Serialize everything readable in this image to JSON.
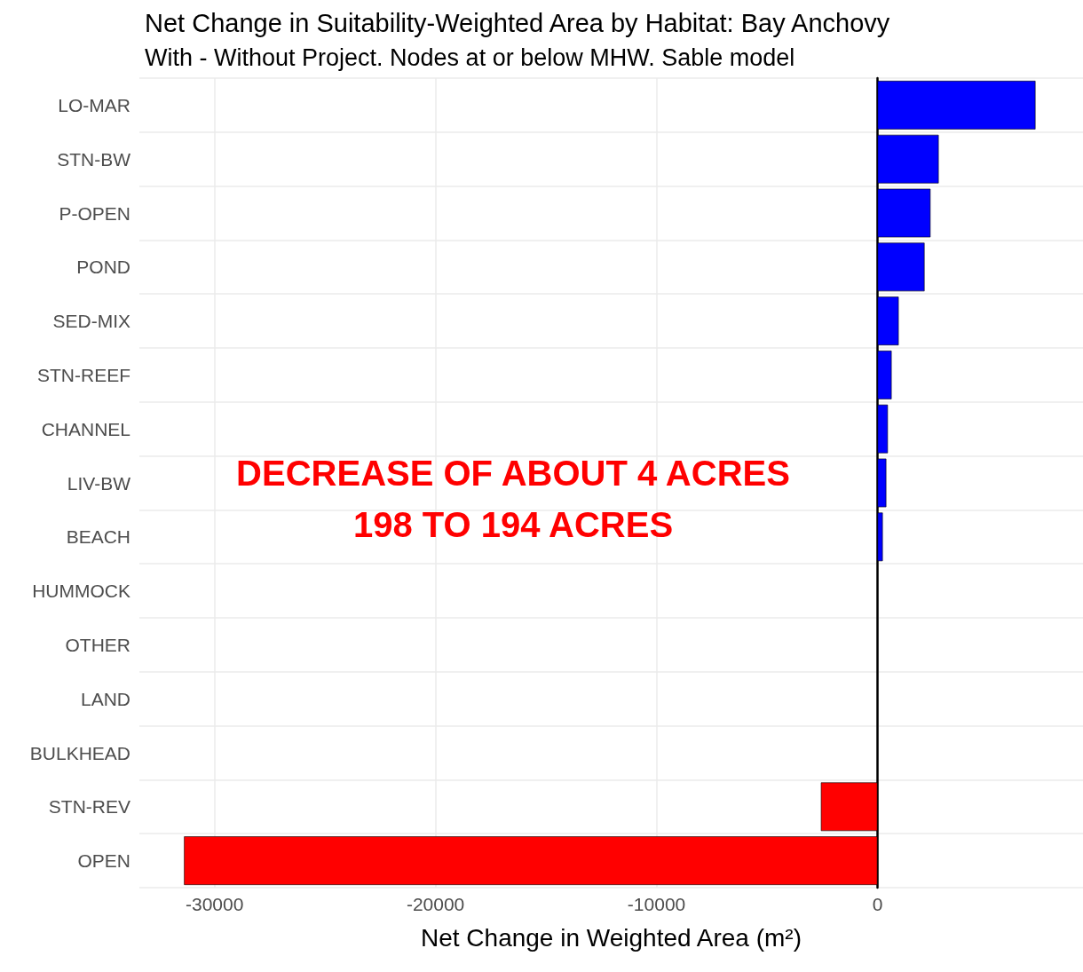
{
  "chart_data": {
    "type": "bar",
    "orientation": "horizontal",
    "title": "Net Change in Suitability-Weighted Area by Habitat: Bay Anchovy",
    "subtitle": "With - Without Project. Nodes at or below MHW. Sable model",
    "xlabel": "Net Change in Weighted Area (m²)",
    "categories": [
      "LO-MAR",
      "STN-BW",
      "P-OPEN",
      "POND",
      "SED-MIX",
      "STN-REEF",
      "CHANNEL",
      "LIV-BW",
      "BEACH",
      "HUMMOCK",
      "OTHER",
      "LAND",
      "BULKHEAD",
      "STN-REV",
      "OPEN"
    ],
    "values": [
      7150,
      2770,
      2400,
      2130,
      960,
      640,
      470,
      400,
      240,
      0,
      0,
      0,
      0,
      -2560,
      -31380
    ],
    "colors": [
      "#0000ff",
      "#0000ff",
      "#0000ff",
      "#0000ff",
      "#0000ff",
      "#0000ff",
      "#0000ff",
      "#0000ff",
      "#0000ff",
      "#0000ff",
      "#0000ff",
      "#0000ff",
      "#ff0000",
      "#ff0000",
      "#ff0000"
    ],
    "xlim": [
      -33400,
      9300
    ],
    "xticks": [
      -30000,
      -20000,
      -10000,
      0
    ],
    "grid": true,
    "annotations": [
      "DECREASE OF ABOUT 4 ACRES",
      "198 TO 194 ACRES"
    ]
  }
}
